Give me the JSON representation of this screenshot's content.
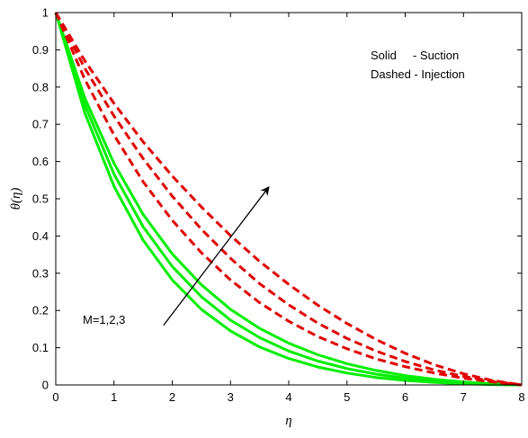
{
  "chart_data": {
    "type": "line",
    "xlabel": "η",
    "ylabel": "θ(η)",
    "xlim": [
      0,
      8
    ],
    "ylim": [
      0,
      1
    ],
    "xticks": [
      "0",
      "1",
      "2",
      "3",
      "4",
      "5",
      "6",
      "7",
      "8"
    ],
    "yticks": [
      "0",
      "0.1",
      "0.2",
      "0.3",
      "0.4",
      "0.5",
      "0.6",
      "0.7",
      "0.8",
      "0.9",
      "1"
    ],
    "grid": false,
    "x": [
      0,
      0.5,
      1,
      1.5,
      2,
      2.5,
      3,
      3.5,
      4,
      4.5,
      5,
      5.5,
      6,
      6.5,
      7,
      7.5,
      8
    ],
    "series": [
      {
        "style": "solid",
        "color": "#00ee00",
        "values": [
          1.0,
          0.73,
          0.533,
          0.389,
          0.282,
          0.203,
          0.145,
          0.102,
          0.071,
          0.048,
          0.032,
          0.02,
          0.012,
          0.007,
          0.003,
          0.001,
          0.0
        ]
      },
      {
        "style": "solid",
        "color": "#00ee00",
        "values": [
          1.0,
          0.752,
          0.566,
          0.425,
          0.318,
          0.237,
          0.174,
          0.127,
          0.091,
          0.064,
          0.044,
          0.029,
          0.018,
          0.01,
          0.005,
          0.002,
          0.0
        ]
      },
      {
        "style": "solid",
        "color": "#00ee00",
        "values": [
          1.0,
          0.77,
          0.595,
          0.458,
          0.352,
          0.269,
          0.203,
          0.152,
          0.112,
          0.081,
          0.057,
          0.039,
          0.025,
          0.015,
          0.008,
          0.003,
          0.0
        ]
      },
      {
        "style": "dashed",
        "color": "#e00000",
        "values": [
          1.0,
          0.82,
          0.671,
          0.546,
          0.442,
          0.355,
          0.282,
          0.221,
          0.171,
          0.13,
          0.097,
          0.07,
          0.049,
          0.032,
          0.018,
          0.008,
          0.0
        ]
      },
      {
        "style": "dashed",
        "color": "#e00000",
        "values": [
          1.0,
          0.85,
          0.722,
          0.608,
          0.507,
          0.418,
          0.34,
          0.272,
          0.215,
          0.166,
          0.125,
          0.091,
          0.063,
          0.04,
          0.023,
          0.01,
          0.0
        ]
      },
      {
        "style": "dashed",
        "color": "#e00000",
        "values": [
          1.0,
          0.87,
          0.756,
          0.653,
          0.561,
          0.478,
          0.401,
          0.332,
          0.27,
          0.214,
          0.165,
          0.122,
          0.085,
          0.054,
          0.03,
          0.012,
          0.0
        ]
      }
    ],
    "annotations": {
      "legend_line1": "Solid     - Suction",
      "legend_line2": "Dashed - Injection",
      "arrow_label": "M=1,2,3",
      "arrow_from": [
        1.85,
        0.16
      ],
      "arrow_to": [
        3.65,
        0.53
      ]
    }
  }
}
